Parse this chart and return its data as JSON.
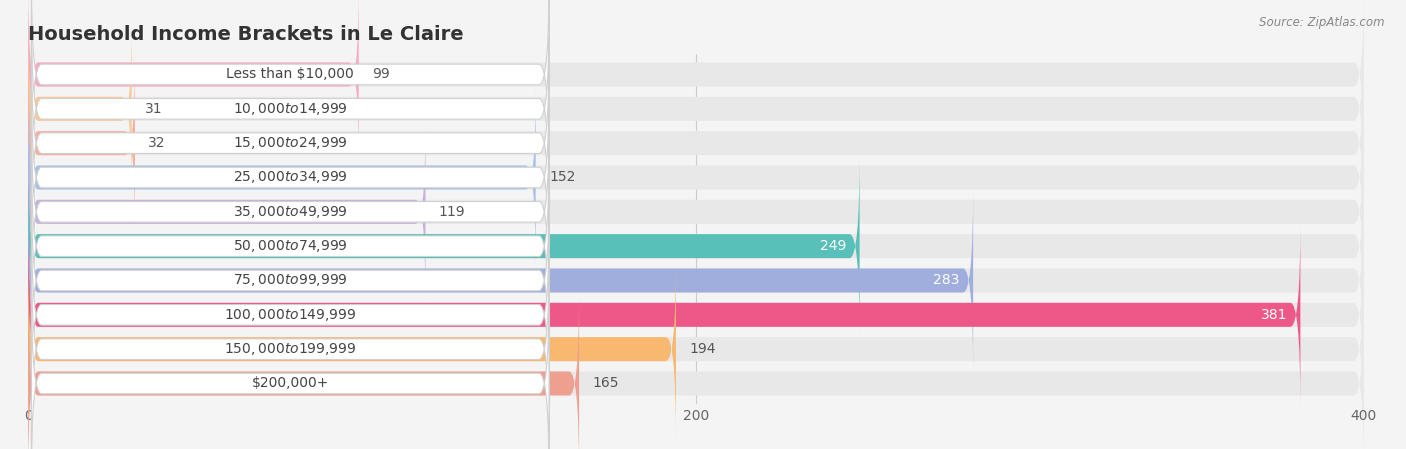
{
  "title": "Household Income Brackets in Le Claire",
  "source": "Source: ZipAtlas.com",
  "categories": [
    "Less than $10,000",
    "$10,000 to $14,999",
    "$15,000 to $24,999",
    "$25,000 to $34,999",
    "$35,000 to $49,999",
    "$50,000 to $74,999",
    "$75,000 to $99,999",
    "$100,000 to $149,999",
    "$150,000 to $199,999",
    "$200,000+"
  ],
  "values": [
    99,
    31,
    32,
    152,
    119,
    249,
    283,
    381,
    194,
    165
  ],
  "bar_colors": [
    "#F8A8BF",
    "#FAC898",
    "#F4B0A0",
    "#A8C0E8",
    "#C8B0DC",
    "#58C0B8",
    "#A0AEDD",
    "#EE5888",
    "#F8B870",
    "#EEA090"
  ],
  "value_inside": [
    false,
    false,
    false,
    false,
    false,
    true,
    true,
    true,
    false,
    false
  ],
  "background_color": "#f4f4f4",
  "bar_background_color": "#e8e8e8",
  "xlim_max": 400,
  "xticks": [
    0,
    200,
    400
  ],
  "title_fontsize": 14,
  "label_fontsize": 10,
  "value_fontsize": 10,
  "tick_fontsize": 10
}
